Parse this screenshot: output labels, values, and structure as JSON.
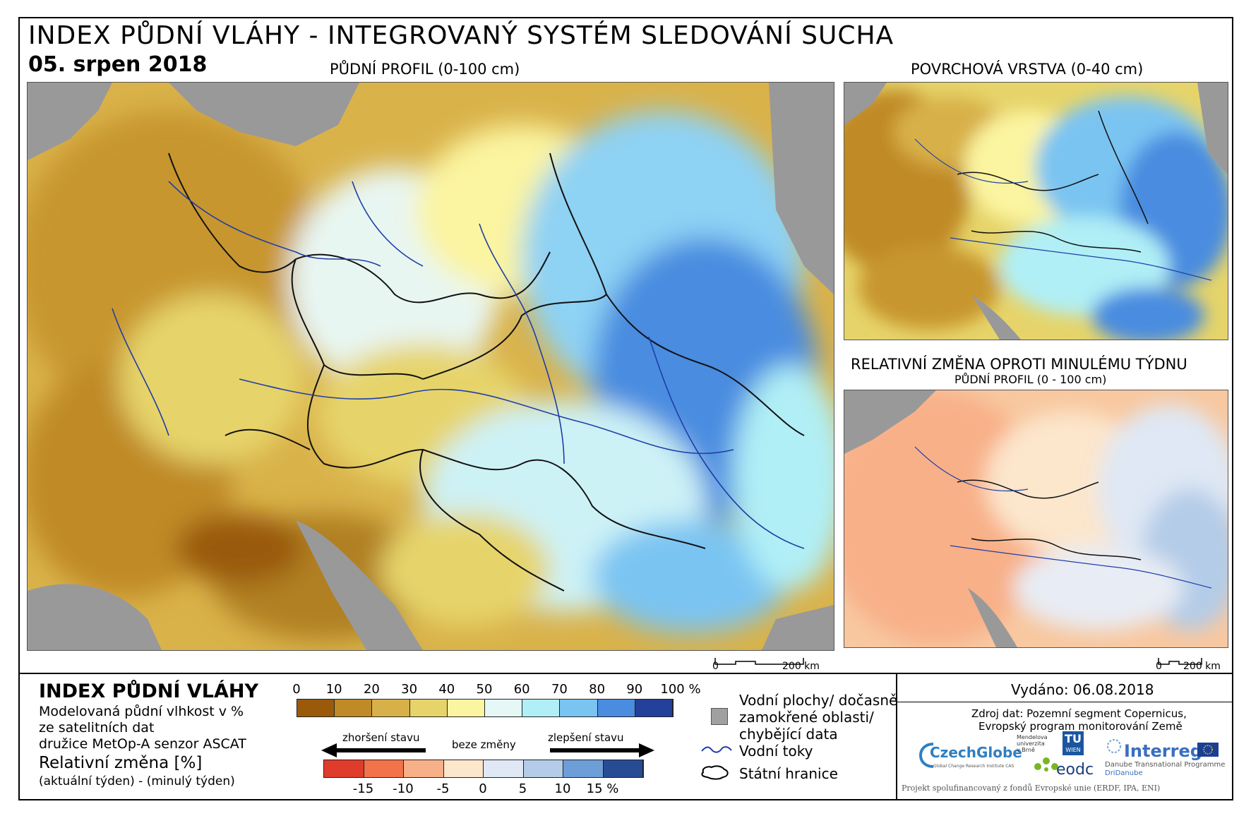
{
  "header": {
    "title": "INDEX PŮDNÍ VLÁHY - INTEGROVANÝ SYSTÉM SLEDOVÁNÍ SUCHA",
    "date": "05. srpen 2018"
  },
  "maps": {
    "main_label": "PŮDNÍ PROFIL (0-100 cm)",
    "surface_label": "POVRCHOVÁ VRSTVA (0-40 cm)",
    "change_label": "RELATIVNÍ ZMĚNA OPROTI MINULÉMU TÝDNU",
    "change_sublabel": "PŮDNÍ PROFIL (0 - 100 cm)",
    "scale_zero": "0",
    "scale_km": "200 km"
  },
  "legend": {
    "title": "INDEX PŮDNÍ VLÁHY",
    "desc1": "Modelovaná půdní vlhkost v %",
    "desc2": "ze satelitních dat",
    "desc3": "družice MetOp-A senzor ASCAT",
    "ticks": [
      "0",
      "10",
      "20",
      "30",
      "40",
      "50",
      "60",
      "70",
      "80",
      "90",
      "100 %"
    ],
    "colors": [
      "#9a5a0a",
      "#c08a28",
      "#d8b04a",
      "#e6d46a",
      "#fbf4a0",
      "#e6f8f6",
      "#b0eff6",
      "#7ac4f2",
      "#4a8ce0",
      "#23409a"
    ],
    "change_title": "Relativní změna [%]",
    "change_desc": "(aktuální týden) - (minulý týden)",
    "worse": "zhoršení stavu",
    "nochange": "beze změny",
    "better": "zlepšení stavu",
    "change_ticks": [
      "-15",
      "-10",
      "-5",
      "0",
      "5",
      "10",
      "15 %"
    ],
    "change_colors": [
      "#e03c2c",
      "#f2724a",
      "#f8b088",
      "#fce6cc",
      "#dfe8f4",
      "#b4cce8",
      "#6e9ed8",
      "#284c94"
    ]
  },
  "symbols": {
    "water": "Vodní plochy/ dočasně",
    "water2": "zamokřené oblasti/",
    "water3": "chybějící data",
    "rivers": "Vodní toky",
    "borders": "Státní hranice"
  },
  "footer": {
    "issued": "Vydáno: 06.08.2018",
    "source1": "Zdroj dat: Pozemní segment Copernicus,",
    "source2": "Evropský program monitorování Země",
    "czechglobe": "CzechGlobe",
    "czechglobe_sub": "Global Change Research Institute CAS",
    "mendel1": "Mendelova",
    "mendel2": "univerzita",
    "mendel3": "v Brně",
    "tu": "TU",
    "wien": "WIEN",
    "eodc": "eodc",
    "interreg": "Interreg",
    "interreg_sub1": "Danube Transnational Programme",
    "interreg_sub2": "DriDanube",
    "project": "Projekt spolufinancovaný z fondů Evropské unie (ERDF, IPA, ENI)"
  }
}
